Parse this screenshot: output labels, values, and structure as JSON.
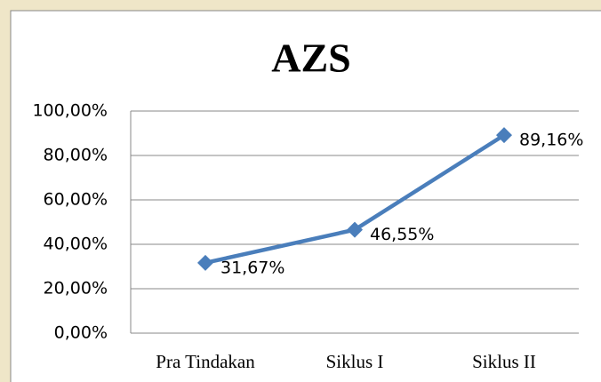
{
  "chart_data": {
    "type": "line",
    "title": "AZS",
    "categories": [
      "Pra Tindakan",
      "Siklus I",
      "Siklus II"
    ],
    "series": [
      {
        "name": "AZS",
        "color": "#4a7ebb",
        "values": [
          31.67,
          46.55,
          89.16
        ],
        "value_labels": [
          "31,67%",
          "46,55%",
          "89,16%"
        ]
      }
    ],
    "ylim": [
      0,
      100
    ],
    "yticks": [
      {
        "value": 0,
        "label": "0,00%"
      },
      {
        "value": 20,
        "label": "20,00%"
      },
      {
        "value": 40,
        "label": "40,00%"
      },
      {
        "value": 60,
        "label": "60,00%"
      },
      {
        "value": 80,
        "label": "80,00%"
      },
      {
        "value": 100,
        "label": "100,00%"
      }
    ],
    "grid": true,
    "legend": false
  }
}
